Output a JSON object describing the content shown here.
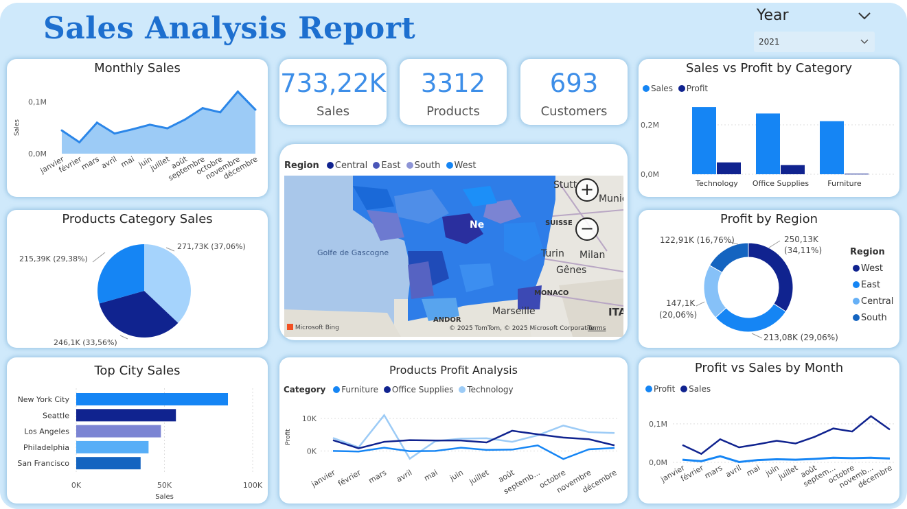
{
  "header": {
    "title": "Sales Analysis Report",
    "year_label": "Year",
    "year_value": "2021"
  },
  "colors": {
    "light_blue": "#9fd0fb",
    "blue": "#1585f4",
    "navy": "#10238f",
    "periwinkle": "#7b84d3",
    "sky": "#57aef7",
    "steel": "#1464c0",
    "line_blue": "#2b86e8",
    "pale": "#9ccbf6"
  },
  "kpis": [
    {
      "value": "733,22K",
      "label": "Sales"
    },
    {
      "value": "3312",
      "label": "Products"
    },
    {
      "value": "693",
      "label": "Customers"
    }
  ],
  "map": {
    "legend_title": "Region",
    "legend": [
      "Central",
      "East",
      "South",
      "West"
    ],
    "labels": {
      "gulf": "Golfe de Gascogne",
      "stuttgart": "Stutt",
      "munich": "Munic",
      "suisse": "SUISSE",
      "turin": "Turin",
      "milan": "Milan",
      "genes": "Gênes",
      "monaco": "MONACO",
      "marseille": "Marseille",
      "andorra": "ANDOR",
      "italy": "ITA",
      "ne": "Ne"
    },
    "attribution": "© 2025 TomTom, © 2025 Microsoft Corporation",
    "terms": "Terms",
    "bing": "Microsoft Bing"
  },
  "chart_data": [
    {
      "id": "monthly-sales",
      "type": "area",
      "title": "Monthly Sales",
      "ylabel": "Sales",
      "categories": [
        "janvier",
        "février",
        "mars",
        "avril",
        "mai",
        "juin",
        "juillet",
        "août",
        "septembre",
        "octobre",
        "novembre",
        "décembre"
      ],
      "values": [
        0.045,
        0.022,
        0.06,
        0.039,
        0.047,
        0.056,
        0.049,
        0.066,
        0.088,
        0.08,
        0.12,
        0.085
      ],
      "ylim": [
        0,
        0.13
      ],
      "yticks": [
        0,
        0.1
      ],
      "yticklabels": [
        "0,0M",
        "0,1M"
      ]
    },
    {
      "id": "products-category-sales",
      "type": "pie",
      "title": "Products Category Sales",
      "slices": [
        {
          "label": "271,73K (37,06%)",
          "value": 271.73
        },
        {
          "label": "246,1K (33,56%)",
          "value": 246.1
        },
        {
          "label": "215,39K (29,38%)",
          "value": 215.39
        }
      ]
    },
    {
      "id": "top-city-sales",
      "type": "bar",
      "title": "Top City Sales",
      "xlabel": "Sales",
      "categories": [
        "New York City",
        "Seattle",
        "Los Angeles",
        "Philadelphia",
        "San Francisco"
      ],
      "values": [
        86000,
        56500,
        48000,
        41000,
        36500
      ],
      "xlim": [
        0,
        100000
      ],
      "xticks": [
        0,
        50000,
        100000
      ],
      "xticklabels": [
        "0K",
        "50K",
        "100K"
      ]
    },
    {
      "id": "sales-vs-profit-category",
      "type": "bar",
      "title": "Sales vs Profit by Category",
      "categories": [
        "Technology",
        "Office Supplies",
        "Furniture"
      ],
      "series": [
        {
          "name": "Sales",
          "values": [
            0.272,
            0.246,
            0.215
          ]
        },
        {
          "name": "Profit",
          "values": [
            0.048,
            0.037,
            0.002
          ]
        }
      ],
      "ylim": [
        0,
        0.3
      ],
      "yticks": [
        0,
        0.2
      ],
      "yticklabels": [
        "0,0M",
        "0,2M"
      ]
    },
    {
      "id": "profit-by-region",
      "type": "pie",
      "title": "Profit by Region",
      "legend_title": "Region",
      "slices": [
        {
          "name": "West",
          "value": 250.13,
          "label": "250,13K (34,11%)"
        },
        {
          "name": "East",
          "value": 213.08,
          "label": "213,08K (29,06%)"
        },
        {
          "name": "Central",
          "value": 147.1,
          "label": "147,1K (20,06%)"
        },
        {
          "name": "South",
          "value": 122.91,
          "label": "122,91K (16,76%)"
        }
      ]
    },
    {
      "id": "products-profit-analysis",
      "type": "line",
      "title": "Products Profit Analysis",
      "legend_title": "Category",
      "ylabel": "Profit",
      "categories": [
        "janvier",
        "février",
        "mars",
        "avril",
        "mai",
        "juin",
        "juillet",
        "août",
        "septemb...",
        "octobre",
        "novembre",
        "décembre"
      ],
      "series": [
        {
          "name": "Furniture",
          "values": [
            0,
            -200,
            1000,
            -100,
            0,
            1000,
            300,
            400,
            1700,
            -2500,
            500,
            900
          ]
        },
        {
          "name": "Office Supplies",
          "values": [
            3300,
            800,
            2800,
            3300,
            3200,
            3200,
            2600,
            6200,
            5100,
            4100,
            3600,
            1700
          ]
        },
        {
          "name": "Technology",
          "values": [
            4000,
            1100,
            11000,
            -2400,
            3000,
            3800,
            3900,
            2800,
            4800,
            7800,
            5800,
            5500
          ]
        }
      ],
      "ylim": [
        -5000,
        14000
      ],
      "yticks": [
        0,
        10000
      ],
      "yticklabels": [
        "0K",
        "10K"
      ]
    },
    {
      "id": "profit-vs-sales-month",
      "type": "line",
      "title": "Profit vs Sales by Month",
      "categories": [
        "janvier",
        "février",
        "mars",
        "avril",
        "mai",
        "juin",
        "juillet",
        "août",
        "septem...",
        "octobre",
        "novemb...",
        "décembre"
      ],
      "series": [
        {
          "name": "Profit",
          "values": [
            0.007,
            0.003,
            0.016,
            0.001,
            0.006,
            0.008,
            0.007,
            0.009,
            0.012,
            0.011,
            0.012,
            0.01
          ]
        },
        {
          "name": "Sales",
          "values": [
            0.045,
            0.022,
            0.06,
            0.039,
            0.047,
            0.056,
            0.049,
            0.066,
            0.088,
            0.08,
            0.12,
            0.085
          ]
        }
      ],
      "ylim": [
        0,
        0.13
      ],
      "yticks": [
        0,
        0.1
      ],
      "yticklabels": [
        "0,0M",
        "0,1M"
      ]
    }
  ]
}
